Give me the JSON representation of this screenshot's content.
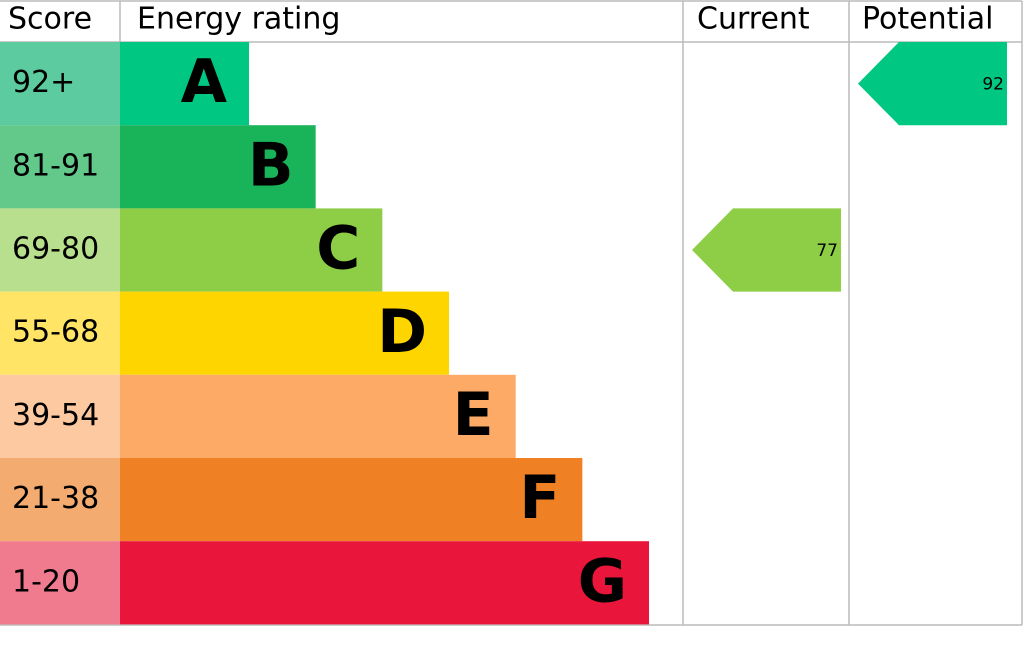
{
  "chart_data": {
    "type": "epc",
    "headers": [
      "Score",
      "Energy rating",
      "Current",
      "Potential"
    ],
    "bands": [
      {
        "score": "92+",
        "letter": "A",
        "color": "#00c781",
        "score_color": "#5ccca0"
      },
      {
        "score": "81-91",
        "letter": "B",
        "color": "#19b459",
        "score_color": "#62c98b"
      },
      {
        "score": "69-80",
        "letter": "C",
        "color": "#8dce46",
        "score_color": "#b8df8d"
      },
      {
        "score": "55-68",
        "letter": "D",
        "color": "#ffd500",
        "score_color": "#ffe466"
      },
      {
        "score": "39-54",
        "letter": "E",
        "color": "#fcaa65",
        "score_color": "#fdc9a1"
      },
      {
        "score": "21-38",
        "letter": "F",
        "color": "#ef8023",
        "score_color": "#f4ab70"
      },
      {
        "score": "1-20",
        "letter": "G",
        "color": "#e9153b",
        "score_color": "#f07a8e"
      }
    ],
    "current": 77,
    "potential": 92
  }
}
